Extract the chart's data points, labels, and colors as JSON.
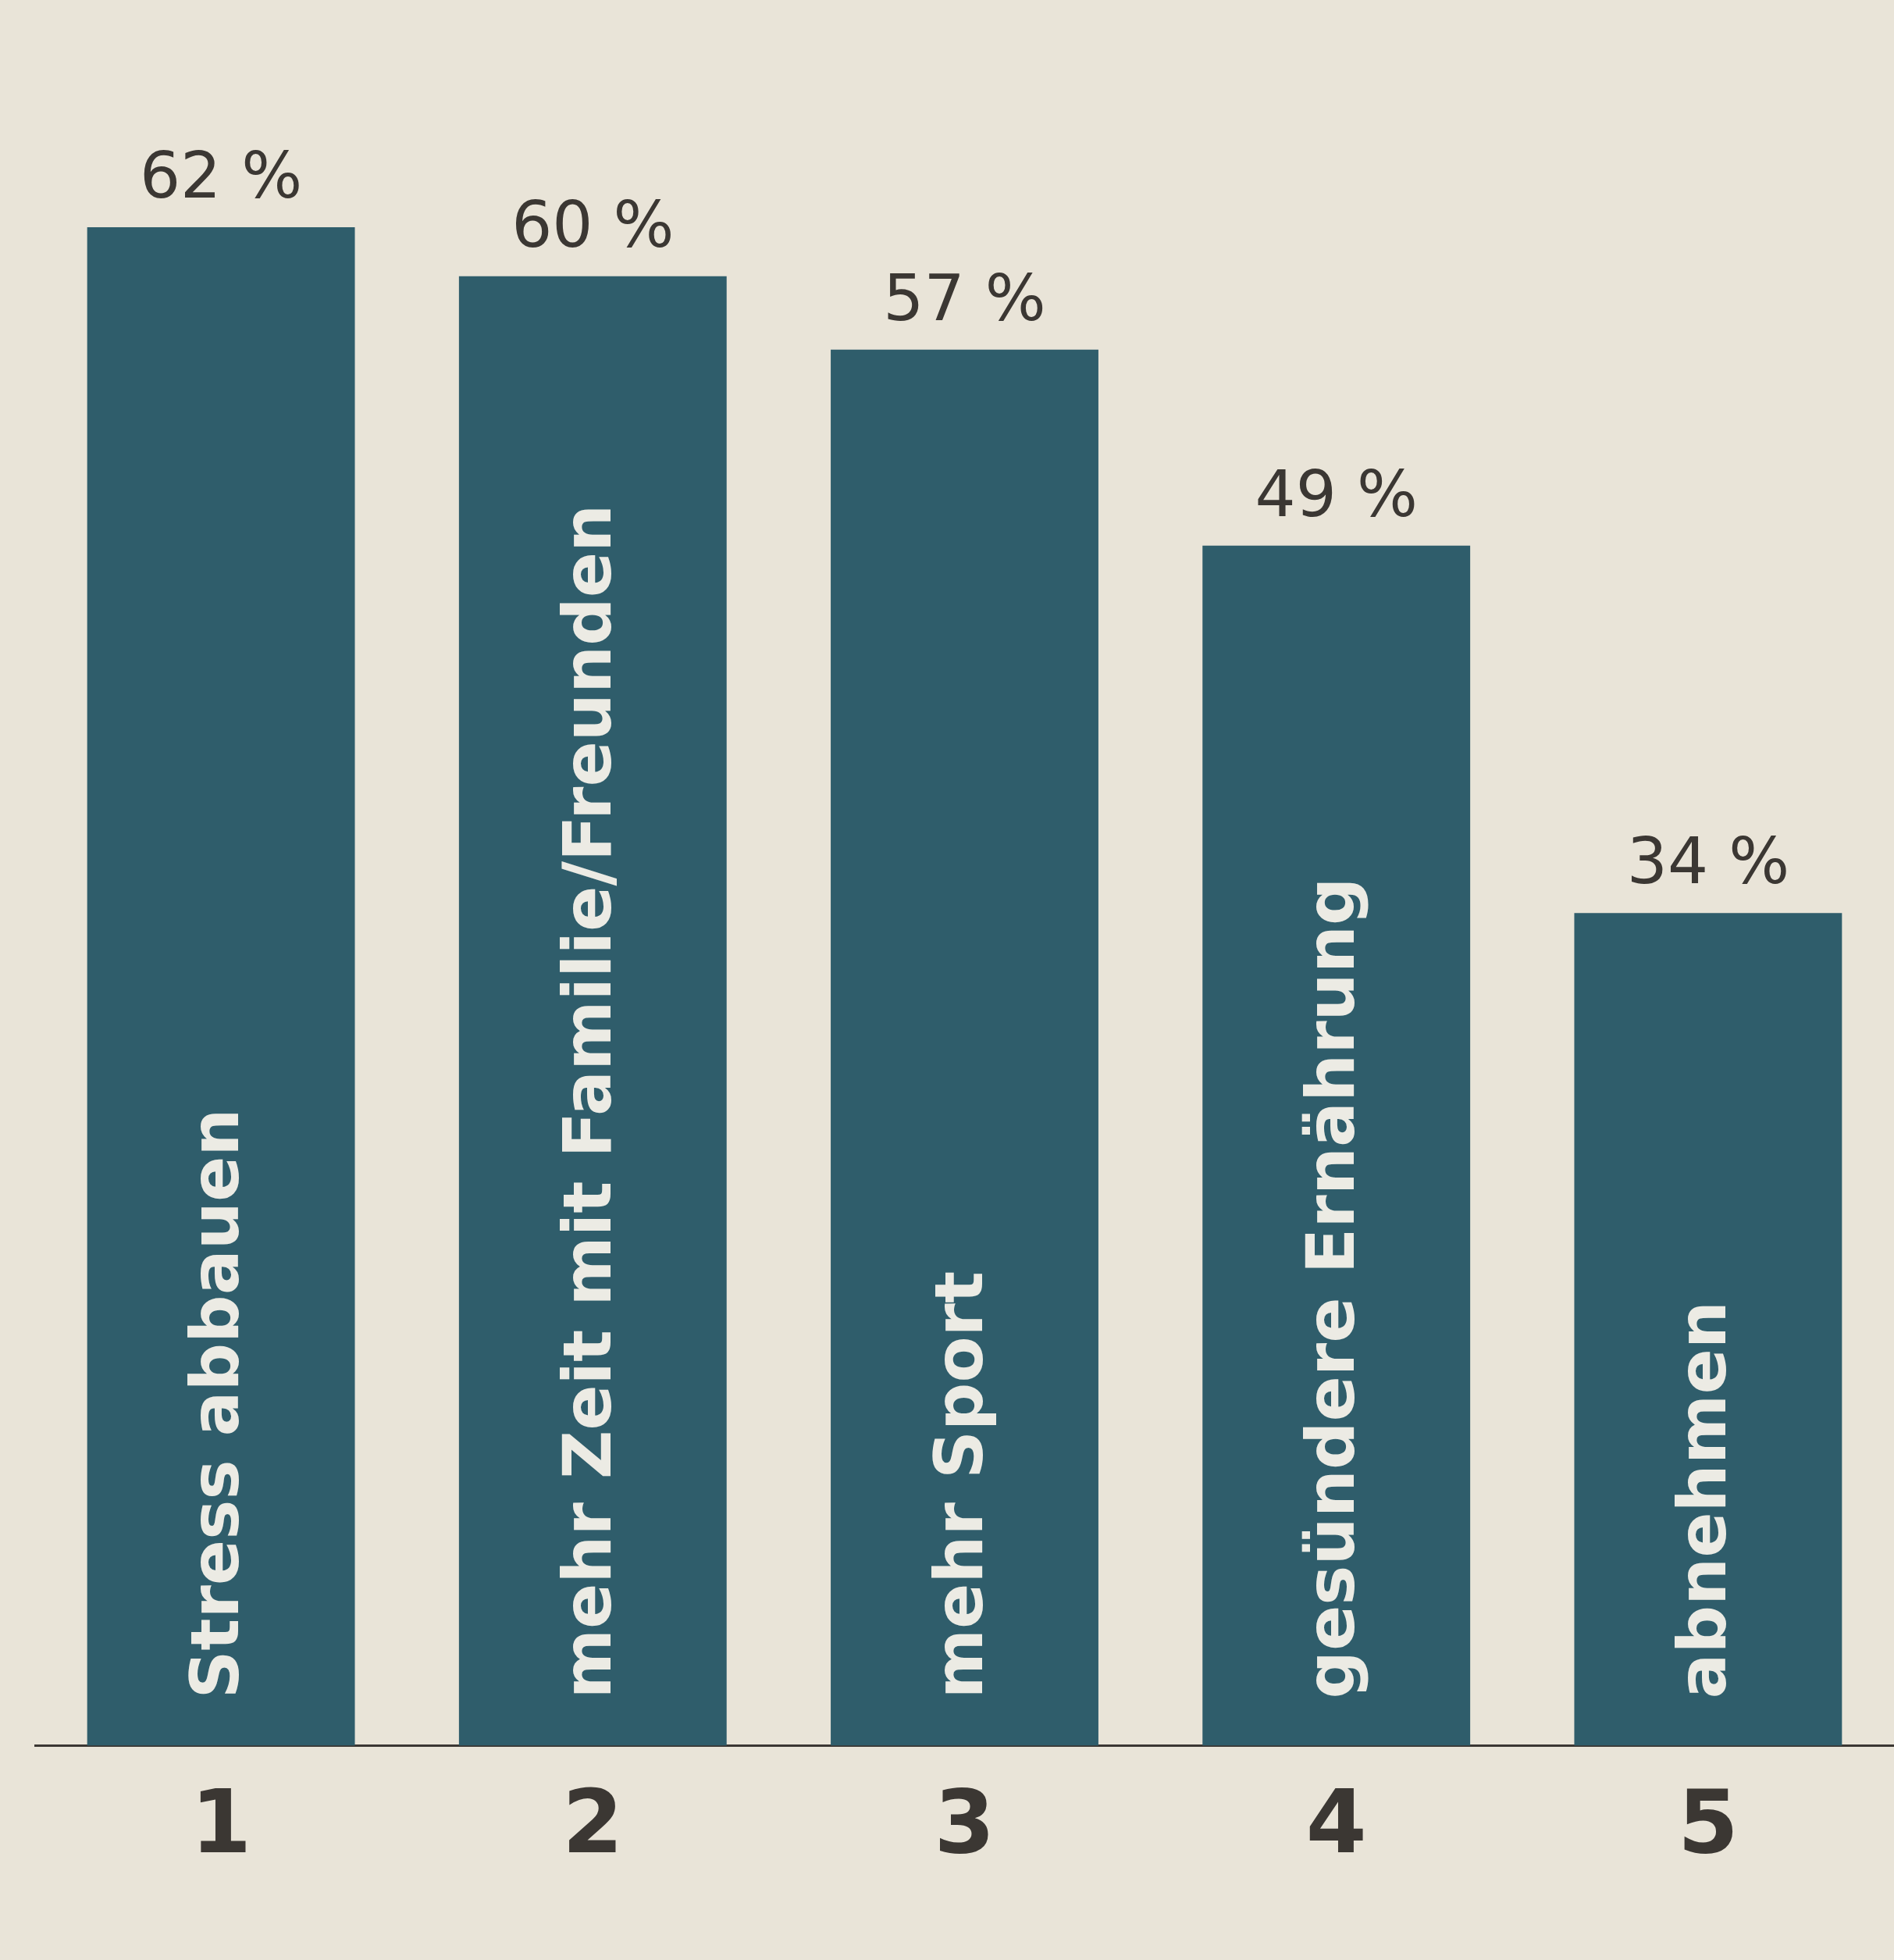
{
  "chart_data": {
    "type": "bar",
    "categories": [
      "1",
      "2",
      "3",
      "4",
      "5"
    ],
    "values": [
      62,
      60,
      57,
      49,
      34
    ],
    "color": "#2f5d6b",
    "value_labels": [
      "62 %",
      "60 %",
      "57 %",
      "49 %",
      "34 %"
    ],
    "annotations": [
      "Stress abbauen",
      "mehr Zeit mit Familie/Freunden",
      "mehr Sport",
      "gesündere Ernährung",
      "abnehmen"
    ],
    "grid": false,
    "legend": false
  }
}
